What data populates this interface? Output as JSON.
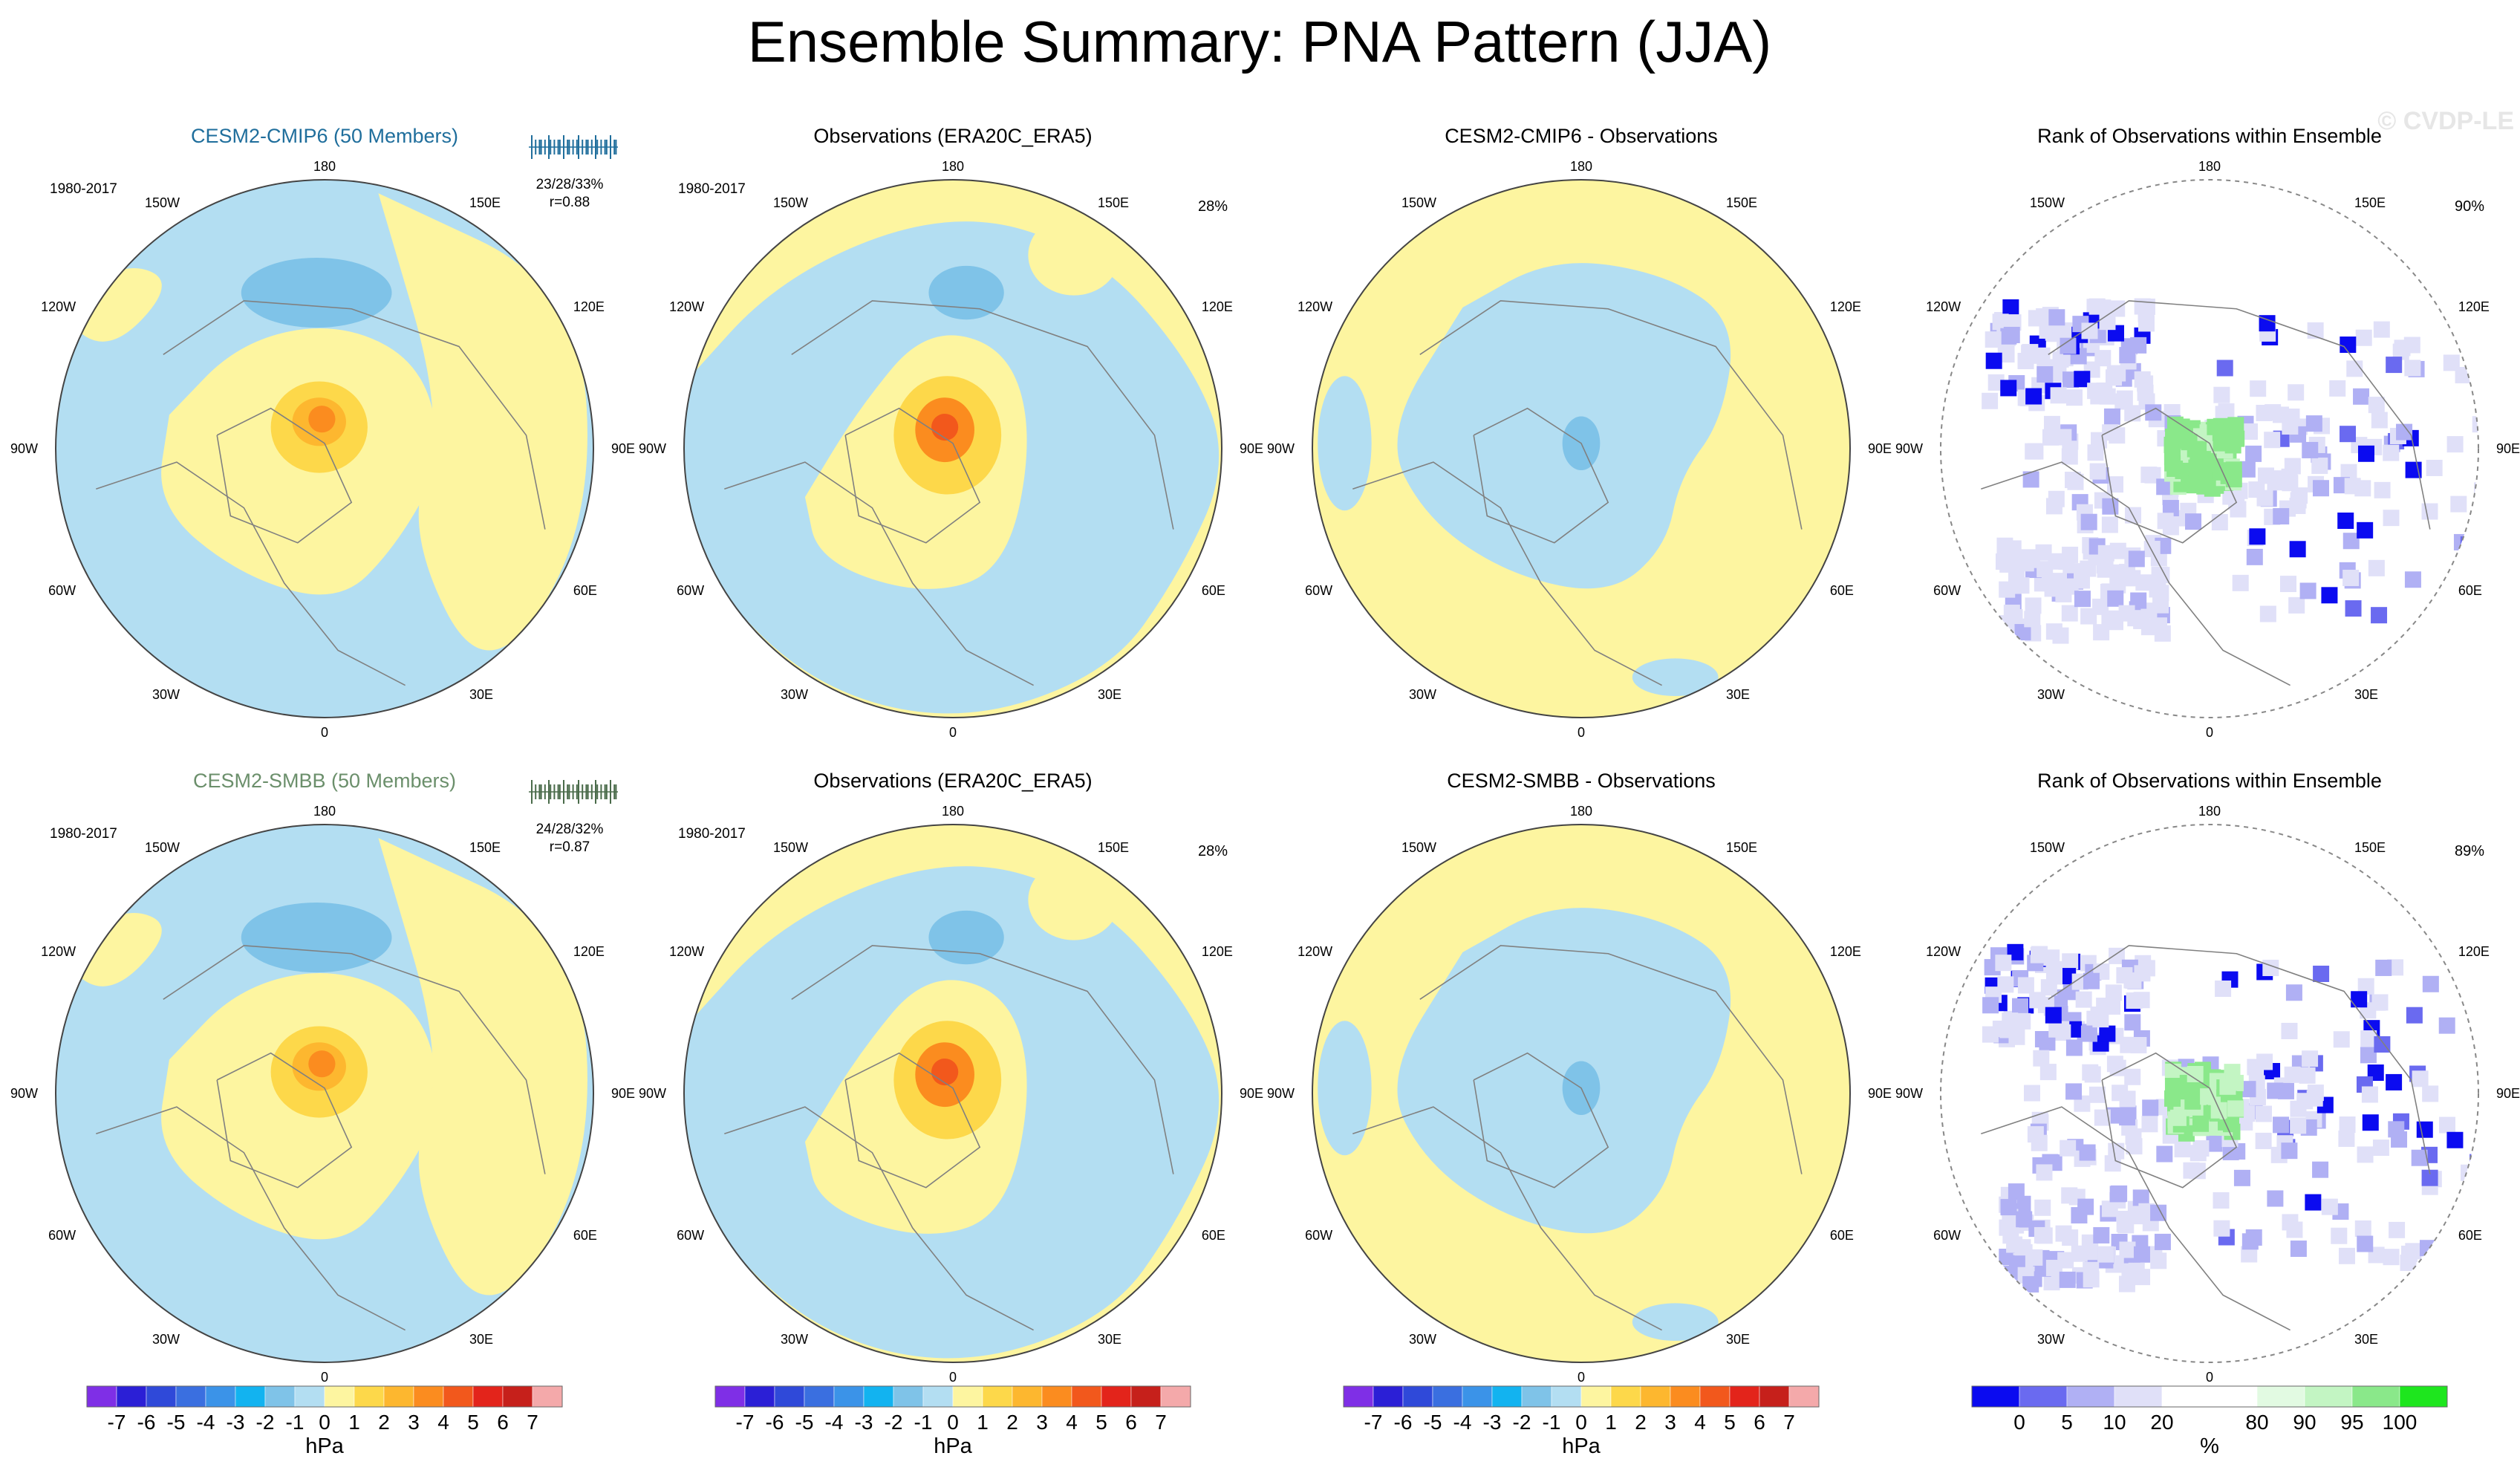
{
  "figure": {
    "title": "Ensemble Summary: PNA Pattern (JJA)",
    "watermark": "© CVDP-LE"
  },
  "colors": {
    "ocean_blue": "#b3def2",
    "pale_yellow": "#fdf5a0",
    "model1_title": "#1f6e9c",
    "model2_title": "#6b8f6b",
    "coast": "#808080"
  },
  "map_labels": {
    "lon_top": "180",
    "lon_bottom": "0",
    "left_ring": [
      "150W",
      "120W",
      "90W",
      "60W",
      "30W"
    ],
    "right_ring": [
      "150E",
      "120E",
      "90E",
      "60E",
      "30E"
    ]
  },
  "panels": [
    {
      "row": 0,
      "col": 0,
      "kind": "model",
      "title": "CESM2-CMIP6 (50 Members)",
      "title_color": "#1f6e9c",
      "period": "1980-2017",
      "stats": "23/28/33%",
      "corr": "r=0.88",
      "ticks_color": "#1f6e9c",
      "pct": ""
    },
    {
      "row": 0,
      "col": 1,
      "kind": "obs",
      "title": "Observations (ERA20C_ERA5)",
      "title_color": "#000000",
      "period": "1980-2017",
      "stats": "",
      "corr": "",
      "pct": "28%"
    },
    {
      "row": 0,
      "col": 2,
      "kind": "diff",
      "title": "CESM2-CMIP6 - Observations",
      "title_color": "#000000",
      "period": "",
      "stats": "",
      "corr": "",
      "pct": ""
    },
    {
      "row": 0,
      "col": 3,
      "kind": "rank",
      "title": "Rank of Observations within Ensemble",
      "title_color": "#000000",
      "period": "",
      "stats": "",
      "corr": "",
      "pct": "90%"
    },
    {
      "row": 1,
      "col": 0,
      "kind": "model",
      "title": "CESM2-SMBB (50 Members)",
      "title_color": "#6b8f6b",
      "period": "1980-2017",
      "stats": "24/28/32%",
      "corr": "r=0.87",
      "ticks_color": "#4a6b4a",
      "pct": ""
    },
    {
      "row": 1,
      "col": 1,
      "kind": "obs",
      "title": "Observations (ERA20C_ERA5)",
      "title_color": "#000000",
      "period": "1980-2017",
      "stats": "",
      "corr": "",
      "pct": "28%"
    },
    {
      "row": 1,
      "col": 2,
      "kind": "diff",
      "title": "CESM2-SMBB - Observations",
      "title_color": "#000000",
      "period": "",
      "stats": "",
      "corr": "",
      "pct": ""
    },
    {
      "row": 1,
      "col": 3,
      "kind": "rank",
      "title": "Rank of Observations within Ensemble",
      "title_color": "#000000",
      "period": "",
      "stats": "",
      "corr": "",
      "pct": "89%"
    }
  ],
  "colorbars": [
    {
      "col": 0,
      "unit": "hPa",
      "labels": [
        "-7",
        "-6",
        "-5",
        "-4",
        "-3",
        "-2",
        "-1",
        "0",
        "1",
        "2",
        "3",
        "4",
        "5",
        "6",
        "7"
      ],
      "colors": [
        "#7f2fe6",
        "#2b1fd6",
        "#2f49d9",
        "#3a6fe0",
        "#3b93e8",
        "#12b3f0",
        "#7fc3e8",
        "#b3def2",
        "#fdf5a0",
        "#fdd84a",
        "#fdb72f",
        "#fb8c1f",
        "#f2581c",
        "#e3241b",
        "#c6201b",
        "#f4a9aa"
      ]
    },
    {
      "col": 1,
      "unit": "hPa",
      "labels": [
        "-7",
        "-6",
        "-5",
        "-4",
        "-3",
        "-2",
        "-1",
        "0",
        "1",
        "2",
        "3",
        "4",
        "5",
        "6",
        "7"
      ],
      "colors": [
        "#7f2fe6",
        "#2b1fd6",
        "#2f49d9",
        "#3a6fe0",
        "#3b93e8",
        "#12b3f0",
        "#7fc3e8",
        "#b3def2",
        "#fdf5a0",
        "#fdd84a",
        "#fdb72f",
        "#fb8c1f",
        "#f2581c",
        "#e3241b",
        "#c6201b",
        "#f4a9aa"
      ]
    },
    {
      "col": 2,
      "unit": "hPa",
      "labels": [
        "-7",
        "-6",
        "-5",
        "-4",
        "-3",
        "-2",
        "-1",
        "0",
        "1",
        "2",
        "3",
        "4",
        "5",
        "6",
        "7"
      ],
      "colors": [
        "#7f2fe6",
        "#2b1fd6",
        "#2f49d9",
        "#3a6fe0",
        "#3b93e8",
        "#12b3f0",
        "#7fc3e8",
        "#b3def2",
        "#fdf5a0",
        "#fdd84a",
        "#fdb72f",
        "#fb8c1f",
        "#f2581c",
        "#e3241b",
        "#c6201b",
        "#f4a9aa"
      ]
    },
    {
      "col": 3,
      "unit": "%",
      "labels": [
        "0",
        "5",
        "10",
        "20",
        "80",
        "90",
        "95",
        "100"
      ],
      "label_bounds": [
        1,
        2,
        3,
        4,
        6,
        7,
        8,
        9
      ],
      "colors": [
        "#0b0bf0",
        "#6a6af0",
        "#b0b0f4",
        "#e0e0f8",
        "#ffffff",
        "#ffffff",
        "#e2fae2",
        "#c3f5c3",
        "#8ae88a",
        "#1ee61e"
      ]
    }
  ],
  "chart_data": {
    "type": "heatmap",
    "title": "Ensemble Summary: PNA Pattern (JJA)",
    "projection": "north polar stereographic",
    "period": "1980-2017",
    "pattern_units": "hPa",
    "contour_levels_hPa": [
      -7,
      -6,
      -5,
      -4,
      -3,
      -2,
      -1,
      0,
      1,
      2,
      3,
      4,
      5,
      6,
      7
    ],
    "rank_levels_percent": [
      0,
      5,
      10,
      20,
      80,
      90,
      95,
      100
    ],
    "models": [
      {
        "name": "CESM2-CMIP6",
        "members": 50,
        "explained_variance": "23/28/33%",
        "pattern_corr": 0.88,
        "rank_area_percent": "90%"
      },
      {
        "name": "CESM2-SMBB",
        "members": 50,
        "explained_variance": "24/28/32%",
        "pattern_corr": 0.87,
        "rank_area_percent": "89%"
      }
    ],
    "observations": {
      "name": "ERA20C_ERA5",
      "explained_variance": "28%"
    },
    "features": [
      {
        "panel": "model",
        "feature": "positive center over Arctic/Greenland",
        "approx_max_hPa": 3,
        "sign": "+"
      },
      {
        "panel": "model",
        "feature": "negative center over North Pacific",
        "approx_min_hPa": -1,
        "sign": "-"
      },
      {
        "panel": "obs",
        "feature": "positive center over Arctic",
        "approx_max_hPa": 4,
        "sign": "+"
      },
      {
        "panel": "diff",
        "feature": "negative difference over Arctic",
        "approx_min_hPa": -1,
        "sign": "-"
      }
    ]
  }
}
